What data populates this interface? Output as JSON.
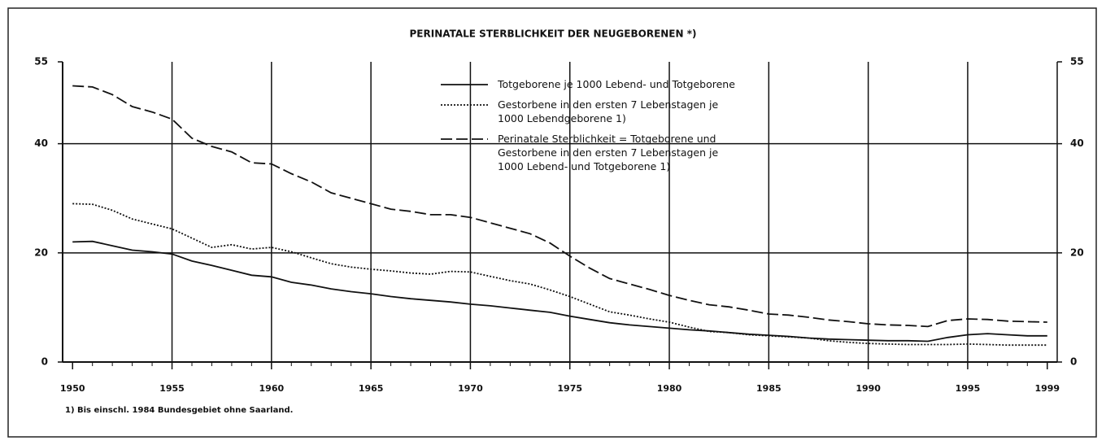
{
  "chart_data": {
    "type": "line",
    "title": "PERINATALE STERBLICHKEIT DER NEUGEBORENEN *)",
    "footnote": "1) Bis einschl. 1984 Bundesgebiet ohne Saarland.",
    "x": [
      1950,
      1951,
      1952,
      1953,
      1954,
      1955,
      1956,
      1957,
      1958,
      1959,
      1960,
      1961,
      1962,
      1963,
      1964,
      1965,
      1966,
      1967,
      1968,
      1969,
      1970,
      1971,
      1972,
      1973,
      1974,
      1975,
      1976,
      1977,
      1978,
      1979,
      1980,
      1981,
      1982,
      1983,
      1984,
      1985,
      1986,
      1987,
      1988,
      1989,
      1990,
      1991,
      1992,
      1993,
      1994,
      1995,
      1996,
      1997,
      1998,
      1999
    ],
    "xlim": [
      1949.5,
      1999.5
    ],
    "xticks": [
      1950,
      1955,
      1960,
      1965,
      1970,
      1975,
      1980,
      1985,
      1990,
      1995,
      1999
    ],
    "ylim": [
      0,
      55
    ],
    "yticks": [
      0,
      20,
      40,
      55
    ],
    "y2lim": [
      0,
      55
    ],
    "y2ticks": [
      0,
      20,
      40,
      55
    ],
    "grid": true,
    "color": "#111",
    "series": [
      {
        "name": "Totgeborene je 1000 Lebend- und Totgeborene",
        "style": "solid",
        "color": "#111",
        "values": [
          22.0,
          22.1,
          21.3,
          20.5,
          20.2,
          19.8,
          18.5,
          17.7,
          16.8,
          15.9,
          15.6,
          14.6,
          14.1,
          13.4,
          12.9,
          12.5,
          12.0,
          11.6,
          11.3,
          11.0,
          10.6,
          10.3,
          9.9,
          9.5,
          9.1,
          8.4,
          7.8,
          7.2,
          6.8,
          6.5,
          6.2,
          5.9,
          5.7,
          5.4,
          5.1,
          4.9,
          4.7,
          4.4,
          4.2,
          4.1,
          4.0,
          3.9,
          3.9,
          3.8,
          4.5,
          5.0,
          5.2,
          5.0,
          4.8,
          4.8
        ]
      },
      {
        "name": "Gestorbene in den ersten 7 Lebenstagen je 1000 Lebendgeborene 1)",
        "style": "dotted",
        "color": "#111",
        "values": [
          29.0,
          28.9,
          27.8,
          26.2,
          25.3,
          24.4,
          22.7,
          21.0,
          21.5,
          20.7,
          21.0,
          20.2,
          19.1,
          18.0,
          17.4,
          17.0,
          16.7,
          16.3,
          16.1,
          16.6,
          16.5,
          15.7,
          14.9,
          14.3,
          13.2,
          12.0,
          10.6,
          9.2,
          8.6,
          7.9,
          7.3,
          6.4,
          5.6,
          5.4,
          5.0,
          4.8,
          4.6,
          4.4,
          3.9,
          3.6,
          3.4,
          3.3,
          3.2,
          3.2,
          3.2,
          3.3,
          3.2,
          3.1,
          3.1,
          3.1
        ]
      },
      {
        "name": "Perinatale Sterblichkeit = Totgeborene und Gestorbene in den ersten 7 Lebenstagen je 1000 Lebend- und Totgeborene 1)",
        "style": "dashed",
        "color": "#111",
        "values": [
          50.6,
          50.4,
          49.0,
          46.8,
          45.8,
          44.5,
          41.0,
          39.5,
          38.5,
          36.5,
          36.3,
          34.5,
          33.0,
          31.0,
          30.0,
          29.0,
          28.0,
          27.6,
          27.0,
          27.0,
          26.5,
          25.5,
          24.5,
          23.5,
          21.8,
          19.4,
          17.2,
          15.3,
          14.3,
          13.3,
          12.2,
          11.3,
          10.5,
          10.1,
          9.5,
          8.8,
          8.6,
          8.2,
          7.7,
          7.4,
          7.0,
          6.8,
          6.7,
          6.5,
          7.6,
          7.9,
          7.8,
          7.5,
          7.4,
          7.3
        ]
      }
    ]
  }
}
